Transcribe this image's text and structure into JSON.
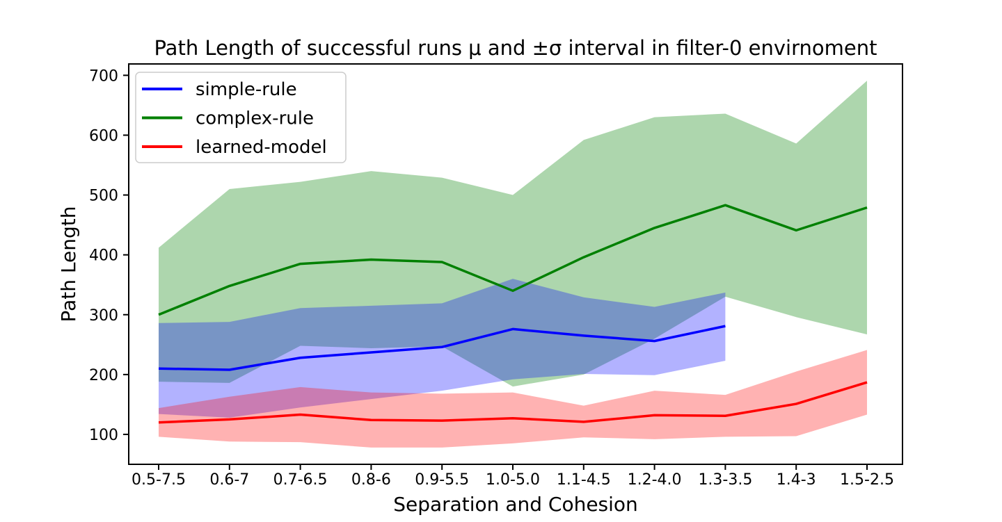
{
  "chart_data": {
    "type": "line",
    "title": "Path Length of successful runs μ and ±σ interval in filter-0 envirnoment",
    "xlabel": "Separation and Cohesion",
    "ylabel": "Path Length",
    "band_meaning": "mean ± one standard deviation",
    "categories": [
      "0.5-7.5",
      "0.6-7",
      "0.7-6.5",
      "0.8-6",
      "0.9-5.5",
      "1.0-5.0",
      "1.1-4.5",
      "1.2-4.0",
      "1.3-3.5",
      "1.4-3",
      "1.5-2.5"
    ],
    "y_ticks": [
      100,
      200,
      300,
      400,
      500,
      600,
      700
    ],
    "ylim": [
      50,
      719
    ],
    "grid": false,
    "legend_position": "upper left",
    "series": [
      {
        "name": "simple-rule",
        "color": "#0000ff",
        "mean": [
          210,
          208,
          228,
          237,
          246,
          276,
          265,
          256,
          281
        ],
        "lo": [
          134,
          128,
          145,
          159,
          173,
          192,
          201,
          199,
          223
        ],
        "hi": [
          286,
          288,
          311,
          315,
          319,
          360,
          329,
          313,
          337
        ]
      },
      {
        "name": "complex-rule",
        "color": "#008000",
        "mean": [
          300,
          348,
          385,
          392,
          388,
          340,
          396,
          445,
          483,
          441,
          479
        ],
        "lo": [
          188,
          186,
          248,
          244,
          247,
          180,
          200,
          260,
          330,
          296,
          267
        ],
        "hi": [
          412,
          510,
          522,
          540,
          529,
          500,
          592,
          630,
          636,
          586,
          691
        ]
      },
      {
        "name": "learned-model",
        "color": "#ff0000",
        "mean": [
          120,
          125,
          133,
          124,
          123,
          127,
          121,
          132,
          131,
          151,
          187
        ],
        "lo": [
          96,
          88,
          87,
          78,
          78,
          85,
          95,
          92,
          96,
          97,
          133
        ],
        "hi": [
          144,
          163,
          179,
          170,
          168,
          170,
          148,
          173,
          166,
          205,
          241
        ]
      }
    ]
  }
}
